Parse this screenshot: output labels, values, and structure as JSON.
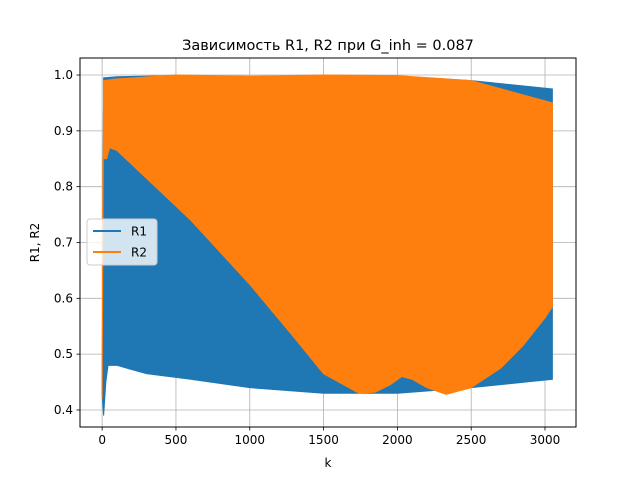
{
  "chart_data": {
    "type": "area",
    "title": "Зависимость R1, R2 при G_inh = 0.087",
    "xlabel": "k",
    "ylabel": "R1, R2",
    "xlim": [
      -150,
      3210
    ],
    "ylim": [
      0.3695,
      1.0305
    ],
    "xticks": [
      0,
      500,
      1000,
      1500,
      2000,
      2500,
      3000
    ],
    "yticks": [
      0.4,
      0.5,
      0.6,
      0.7,
      0.8,
      0.9,
      1.0
    ],
    "xtick_labels": [
      "0",
      "500",
      "1000",
      "1500",
      "2000",
      "2500",
      "3000"
    ],
    "ytick_labels": [
      "0.4",
      "0.5",
      "0.6",
      "0.7",
      "0.8",
      "0.9",
      "1.0"
    ],
    "grid": true,
    "legend_position": "center-left",
    "series": [
      {
        "name": "R1",
        "color": "#1f77b4",
        "upper": [
          [
            0,
            0.43
          ],
          [
            10,
            0.995
          ],
          [
            100,
            0.997
          ],
          [
            500,
            0.999
          ],
          [
            1000,
            0.997
          ],
          [
            1500,
            0.999
          ],
          [
            2000,
            0.998
          ],
          [
            2500,
            0.99
          ],
          [
            3050,
            0.975
          ]
        ],
        "lower": [
          [
            0,
            0.43
          ],
          [
            10,
            0.39
          ],
          [
            25,
            0.45
          ],
          [
            40,
            0.48
          ],
          [
            100,
            0.48
          ],
          [
            300,
            0.465
          ],
          [
            600,
            0.455
          ],
          [
            1000,
            0.44
          ],
          [
            1500,
            0.43
          ],
          [
            2000,
            0.43
          ],
          [
            2500,
            0.44
          ],
          [
            3050,
            0.455
          ]
        ]
      },
      {
        "name": "R2",
        "color": "#ff7f0e",
        "upper": [
          [
            0,
            0.42
          ],
          [
            10,
            0.99
          ],
          [
            100,
            0.993
          ],
          [
            500,
            1.0
          ],
          [
            1000,
            0.998
          ],
          [
            1500,
            1.0
          ],
          [
            2000,
            0.999
          ],
          [
            2500,
            0.99
          ],
          [
            3050,
            0.95
          ]
        ],
        "lower": [
          [
            0,
            0.42
          ],
          [
            5,
            0.85
          ],
          [
            30,
            0.85
          ],
          [
            50,
            0.87
          ],
          [
            100,
            0.865
          ],
          [
            300,
            0.815
          ],
          [
            600,
            0.74
          ],
          [
            1000,
            0.625
          ],
          [
            1300,
            0.53
          ],
          [
            1500,
            0.465
          ],
          [
            1740,
            0.43
          ],
          [
            1850,
            0.432
          ],
          [
            1950,
            0.445
          ],
          [
            2030,
            0.46
          ],
          [
            2100,
            0.455
          ],
          [
            2200,
            0.44
          ],
          [
            2330,
            0.428
          ],
          [
            2500,
            0.44
          ],
          [
            2700,
            0.475
          ],
          [
            2850,
            0.515
          ],
          [
            3000,
            0.565
          ],
          [
            3050,
            0.585
          ]
        ]
      }
    ]
  }
}
